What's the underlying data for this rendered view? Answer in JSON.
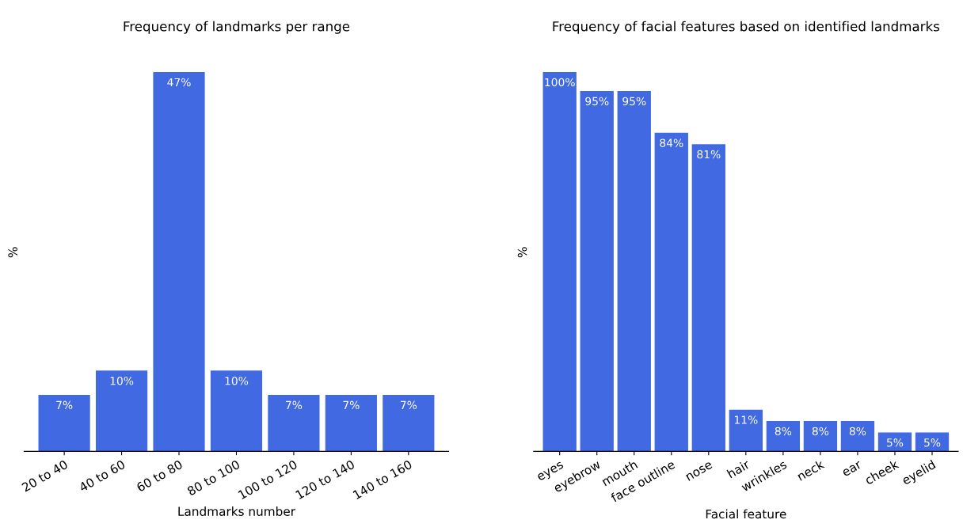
{
  "chart_data": [
    {
      "type": "bar",
      "title": "Frequency of landmarks per range",
      "xlabel": "Landmarks number",
      "ylabel": "%",
      "categories": [
        "20 to 40",
        "40 to 60",
        "60 to 80",
        "80 to 100",
        "100 to 120",
        "120 to 140",
        "140 to 160"
      ],
      "series": [
        {
          "color": "#4169e1",
          "values": [
            7,
            10,
            47,
            10,
            7,
            7,
            7
          ],
          "value_labels": [
            "7%",
            "10%",
            "47%",
            "10%",
            "7%",
            "7%",
            "7%"
          ]
        }
      ],
      "tick_labels": "x",
      "grid": false,
      "legend": false
    },
    {
      "type": "bar",
      "title": "Frequency of facial features based on identified landmarks",
      "xlabel": "Facial feature",
      "ylabel": "%",
      "categories": [
        "eyes",
        "eyebrow",
        "mouth",
        "face outline",
        "nose",
        "hair",
        "wrinkles",
        "neck",
        "ear",
        "cheek",
        "eyelid"
      ],
      "series": [
        {
          "color": "#4169e1",
          "values": [
            100,
            95,
            95,
            84,
            81,
            11,
            8,
            8,
            8,
            5,
            5
          ],
          "value_labels": [
            "100%",
            "95%",
            "95%",
            "84%",
            "81%",
            "11%",
            "8%",
            "8%",
            "8%",
            "5%",
            "5%"
          ]
        }
      ],
      "tick_labels": "x",
      "grid": false,
      "legend": false
    }
  ]
}
